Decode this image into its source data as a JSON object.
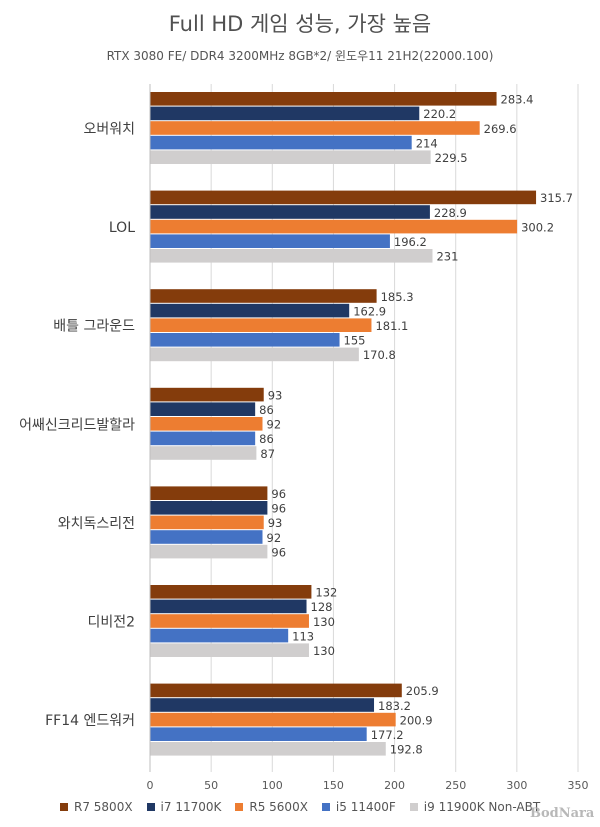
{
  "chart_data": {
    "type": "bar",
    "orientation": "horizontal",
    "title": "Full HD 게임 성능, 가장 높음",
    "subtitle": "RTX 3080 FE/ DDR4 3200MHz 8GB*2/ 윈도우11 21H2(22000.100)",
    "categories": [
      "오버워치",
      "LOL",
      "배틀 그라운드",
      "어쌔신크리드발할라",
      "와치독스리전",
      "디비전2",
      "FF14 엔드워커"
    ],
    "series": [
      {
        "name": "R7 5800X",
        "color": "#843C0C",
        "values": [
          283.4,
          315.7,
          185.3,
          93,
          96,
          132,
          205.9
        ]
      },
      {
        "name": "i7 11700K",
        "color": "#203864",
        "values": [
          220.2,
          228.9,
          162.9,
          86,
          96,
          128,
          183.2
        ]
      },
      {
        "name": "R5 5600X",
        "color": "#ED7D31",
        "values": [
          269.6,
          300.2,
          181.1,
          92,
          93,
          130,
          200.9
        ]
      },
      {
        "name": "i5 11400F",
        "color": "#4472C4",
        "values": [
          214,
          196.2,
          155,
          86,
          92,
          113,
          177.2
        ]
      },
      {
        "name": "i9 11900K Non-ABT",
        "color": "#D0CECE",
        "values": [
          229.5,
          231,
          170.8,
          87,
          96,
          130,
          192.8
        ]
      }
    ],
    "xlim": [
      0,
      350
    ],
    "xticks": [
      0,
      50,
      100,
      150,
      200,
      250,
      300,
      350
    ],
    "grid": true,
    "legend": "bottom"
  },
  "watermark": "BodNara"
}
